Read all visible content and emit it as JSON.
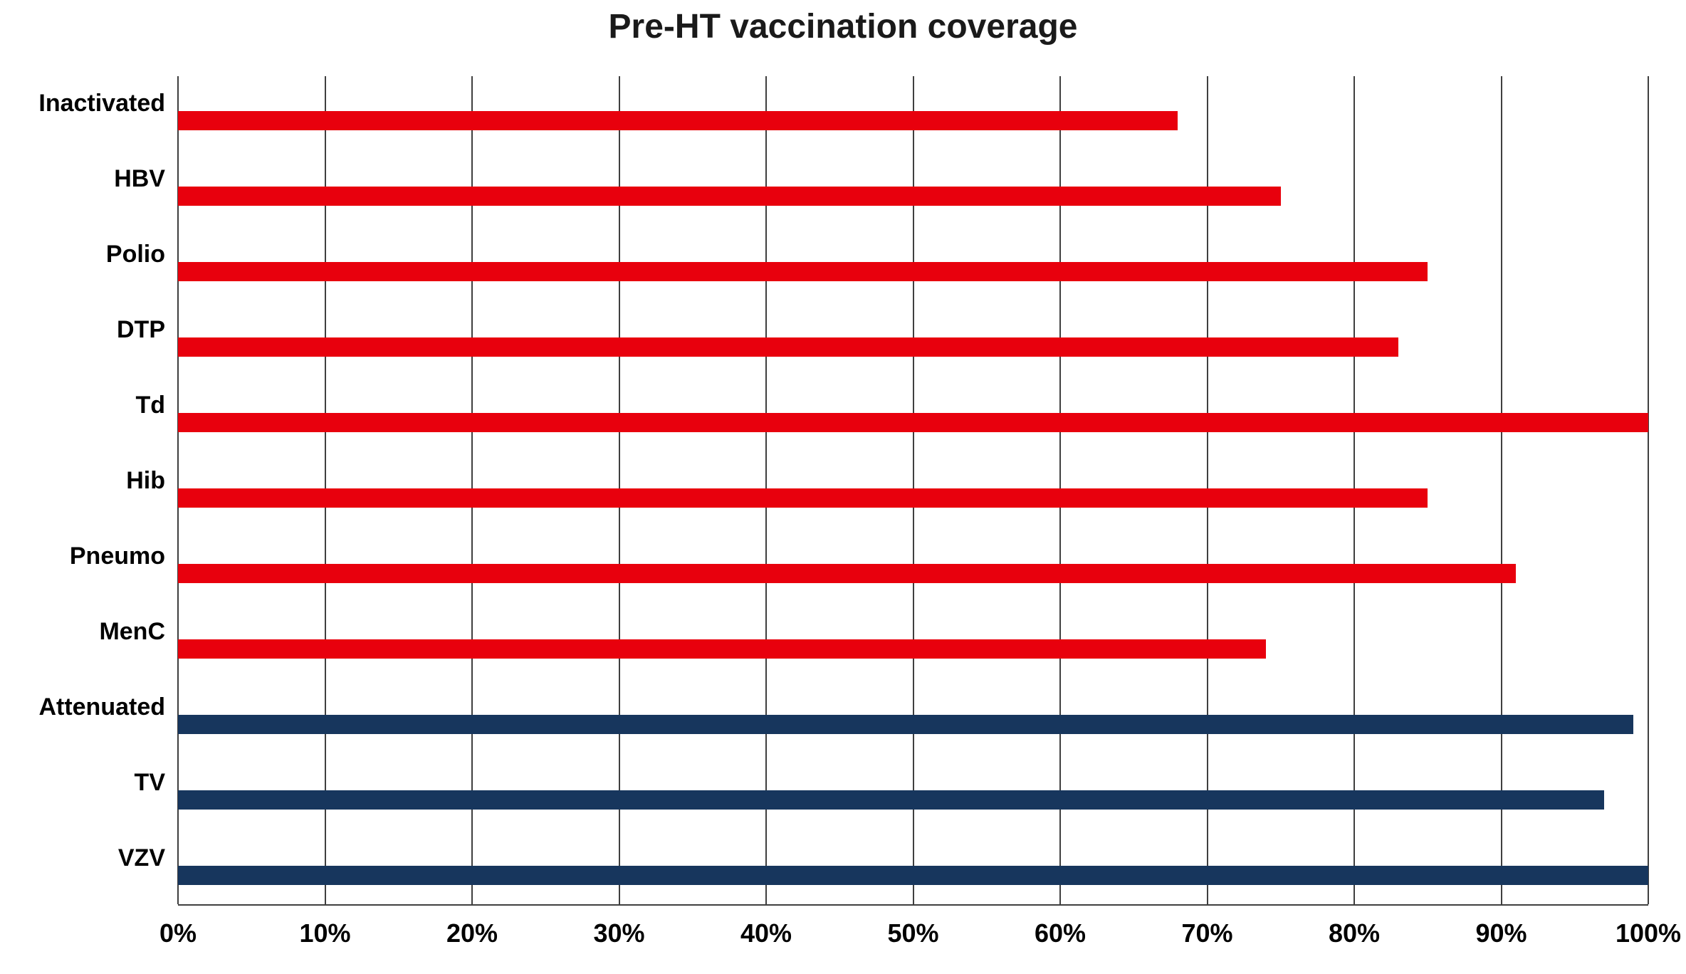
{
  "chart_data": {
    "type": "bar",
    "orientation": "horizontal",
    "title": "Pre-HT vaccination coverage",
    "categories": [
      "Inactivated",
      "HBV",
      "Polio",
      "DTP",
      "Td",
      "Hib",
      "Pneumo",
      "MenC",
      "Attenuated",
      "TV",
      "VZV"
    ],
    "values": [
      68,
      75,
      85,
      83,
      100,
      85,
      91,
      74,
      99,
      97,
      100
    ],
    "bar_colors": [
      "#e8000d",
      "#e8000d",
      "#e8000d",
      "#e8000d",
      "#e8000d",
      "#e8000d",
      "#e8000d",
      "#e8000d",
      "#17365d",
      "#17365d",
      "#17365d"
    ],
    "xlim": [
      0,
      100
    ],
    "xtick_labels": [
      "0%",
      "10%",
      "20%",
      "30%",
      "40%",
      "50%",
      "60%",
      "70%",
      "80%",
      "90%",
      "100%"
    ],
    "grid": "vertical",
    "legend": "none",
    "gridline_color": "#3f3f3f"
  }
}
